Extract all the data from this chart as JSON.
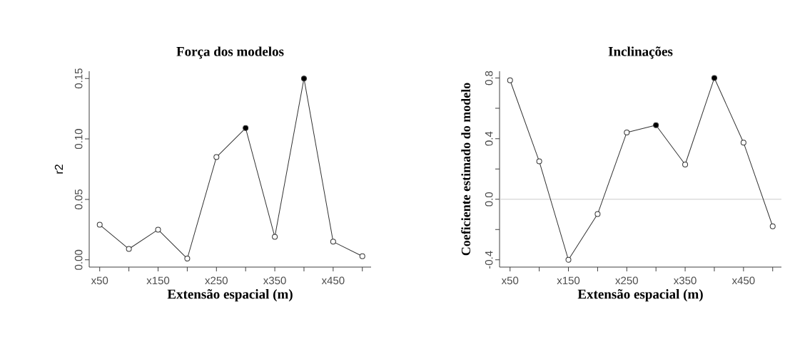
{
  "chart_data": [
    {
      "type": "line",
      "title": "Força dos modelos",
      "xlabel": "Extensão espacial (m)",
      "ylabel": "r2",
      "marker": "circle",
      "categories": [
        "x50",
        null,
        "x150",
        null,
        "x250",
        null,
        "x350",
        null,
        "x450",
        null
      ],
      "ylim": [
        -0.006,
        0.156
      ],
      "yticks": [
        {
          "value": 0,
          "label": "0.00"
        },
        {
          "value": 0.05,
          "label": "0.05"
        },
        {
          "value": 0.1,
          "label": "0.10"
        },
        {
          "value": 0.15,
          "label": "0.15"
        }
      ],
      "series": [
        {
          "color": "#333333",
          "colors": [
            "#ffffff",
            "#ffffff",
            "#ffffff",
            "#ffffff",
            "#ffffff",
            "#000000",
            "#ffffff",
            "#000000",
            "#ffffff",
            "#ffffff"
          ],
          "values": [
            0.029,
            0.009,
            0.025,
            0.001,
            0.085,
            0.109,
            0.019,
            0.15,
            0.015,
            0.003
          ]
        }
      ]
    },
    {
      "type": "line",
      "title": "Inclinações",
      "xlabel": "Extensão espacial (m)",
      "ylabel": "Coeficiente estimado  do modelo",
      "marker": "circle",
      "categories": [
        "x50",
        null,
        "x150",
        null,
        "x250",
        null,
        "x350",
        null,
        "x450",
        null
      ],
      "ylim": [
        -0.448,
        0.845
      ],
      "yticks": [
        {
          "value": -0.4,
          "label": "-0.4"
        },
        {
          "value": -0.2,
          "label": null
        },
        {
          "value": 0,
          "label": "0.0"
        },
        {
          "value": 0.2,
          "label": null
        },
        {
          "value": 0.4,
          "label": "0.4"
        },
        {
          "value": 0.6,
          "label": null
        },
        {
          "value": 0.8,
          "label": "0.8"
        }
      ],
      "ref_lines": [
        {
          "axis": "y",
          "value": 0,
          "color": "#cccccc"
        }
      ],
      "series": [
        {
          "color": "#333333",
          "colors": [
            "#ffffff",
            "#ffffff",
            "#ffffff",
            "#ffffff",
            "#ffffff",
            "#000000",
            "#ffffff",
            "#000000",
            "#ffffff",
            "#ffffff"
          ],
          "values": [
            0.785,
            0.25,
            -0.4,
            -0.098,
            0.441,
            0.489,
            0.229,
            0.8,
            0.374,
            -0.179
          ]
        }
      ]
    }
  ]
}
